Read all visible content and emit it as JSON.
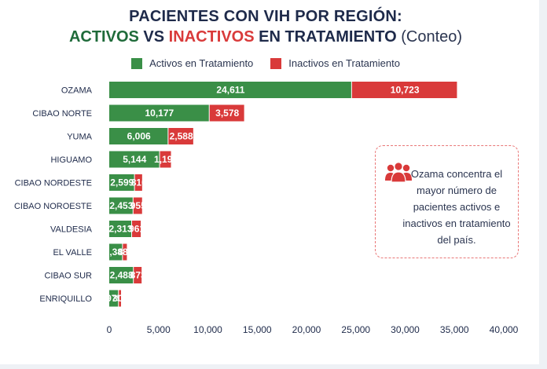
{
  "chart_data": {
    "type": "bar",
    "orientation": "horizontal",
    "stacked": true,
    "title_line1": "PACIENTES CON VIH POR REGIÓN:",
    "title_line2": {
      "part1": "ACTIVOS",
      "part2": " VS ",
      "part3": "INACTIVOS",
      "part4": " EN TRATAMIENTO",
      "part5": " (Conteo)"
    },
    "categories": [
      "OZAMA",
      "CIBAO NORTE",
      "YUMA",
      "HIGUAMO",
      "CIBAO NORDESTE",
      "CIBAO NOROESTE",
      "VALDESIA",
      "EL VALLE",
      "CIBAO SUR",
      "ENRIQUILLO"
    ],
    "series": [
      {
        "name": "Activos en Tratamiento",
        "color": "#3a8f47",
        "values": [
          24611,
          10177,
          6006,
          5144,
          2599,
          2453,
          2313,
          1383,
          2488,
          975
        ],
        "labels": [
          "24,611",
          "10,177",
          "6,006",
          "5,144",
          "2,599",
          "2,453",
          "2,313",
          "1,383",
          "2,488",
          "975"
        ]
      },
      {
        "name": "Inactivos en Tratamiento",
        "color": "#d93a3a",
        "values": [
          10723,
          3578,
          2588,
          1193,
          816,
          955,
          961,
          484,
          873,
          300
        ],
        "labels": [
          "10,723",
          "3,578",
          "2,588",
          "1,193",
          "816",
          "955",
          "961",
          "484",
          "873",
          "300"
        ]
      }
    ],
    "xlim": [
      0,
      40000
    ],
    "x_ticks": [
      0,
      5000,
      10000,
      15000,
      20000,
      25000,
      30000,
      35000,
      40000
    ],
    "x_tick_labels": [
      "0",
      "5,000",
      "10,000",
      "15,000",
      "20,000",
      "25,000",
      "30,000",
      "35,000",
      "40,000"
    ],
    "grid": false,
    "legend_position": "top-center"
  },
  "callout": {
    "icon": "people-group-icon",
    "text": "Ozama concentra el mayor número de pacientes activos e inactivos en tratamiento del país."
  }
}
